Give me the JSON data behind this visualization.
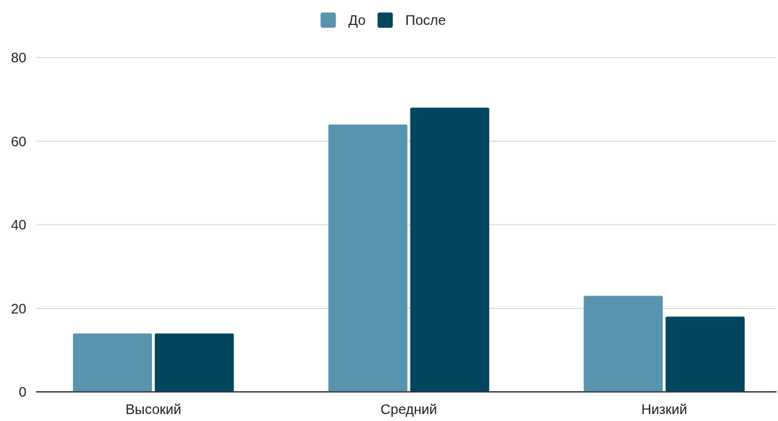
{
  "chart_data": {
    "type": "bar",
    "categories": [
      "Высокий",
      "Средний",
      "Низкий"
    ],
    "series": [
      {
        "name": "До",
        "color": "#5893b0",
        "values": [
          14,
          64,
          23
        ]
      },
      {
        "name": "После",
        "color": "#02465f",
        "values": [
          14,
          68,
          18
        ]
      }
    ],
    "ylim": [
      0,
      80
    ],
    "yticks": [
      0,
      20,
      40,
      60,
      80
    ],
    "grid": "y",
    "legend": "top"
  }
}
